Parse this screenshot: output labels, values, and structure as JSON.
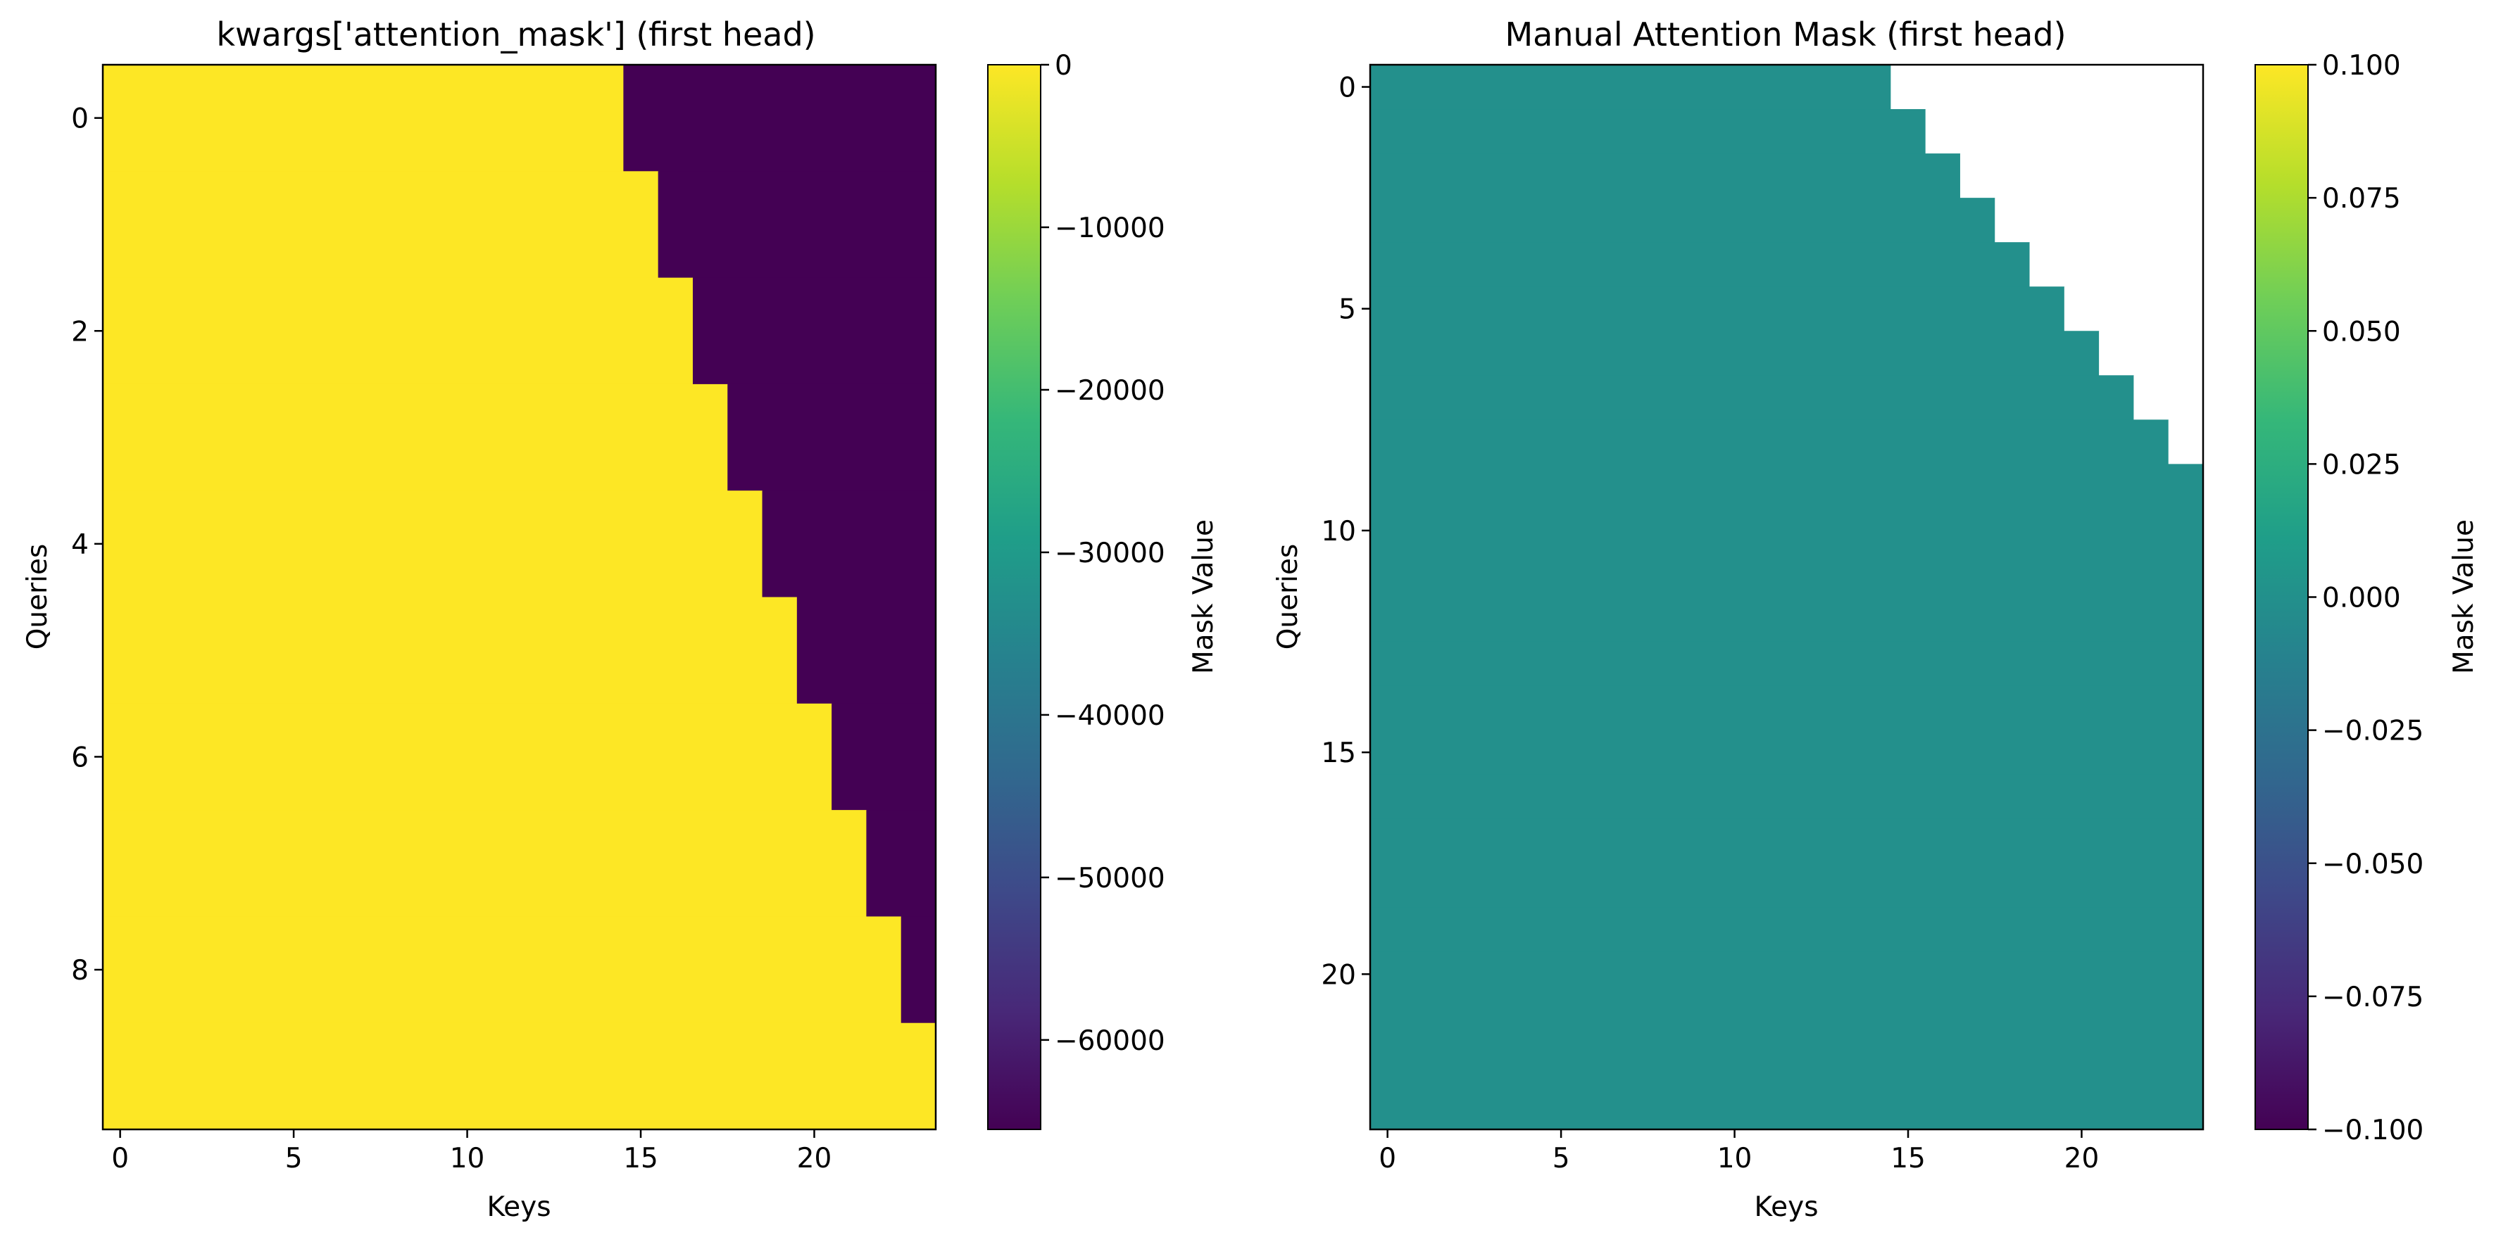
{
  "chart_data": [
    {
      "type": "heatmap",
      "title": "kwargs['attention_mask'] (first head)",
      "xlabel": "Keys",
      "ylabel": "Queries",
      "rows": 10,
      "cols": 24,
      "xticks": [
        0,
        5,
        10,
        15,
        20
      ],
      "yticks": [
        0,
        2,
        4,
        6,
        8
      ],
      "masked_value": -65504,
      "unmasked_value": 0,
      "allowed_key_count_per_row": [
        15,
        16,
        17,
        18,
        19,
        20,
        21,
        22,
        23,
        24
      ],
      "colormap": "viridis",
      "colorbar": {
        "label": "Mask Value",
        "range": [
          -65504,
          0
        ],
        "ticks": [
          0,
          -10000,
          -20000,
          -30000,
          -40000,
          -50000,
          -60000
        ],
        "tick_labels": [
          "0",
          "−10000",
          "−20000",
          "−30000",
          "−40000",
          "−50000",
          "−60000"
        ]
      },
      "masked_cells_shown_as": "color"
    },
    {
      "type": "heatmap",
      "title": "Manual Attention Mask (first head)",
      "xlabel": "Keys",
      "ylabel": "Queries",
      "rows": 24,
      "cols": 24,
      "xticks": [
        0,
        5,
        10,
        15,
        20
      ],
      "yticks": [
        0,
        5,
        10,
        15,
        20
      ],
      "masked_value": null,
      "unmasked_value": 0,
      "allowed_key_count_per_row": [
        15,
        16,
        17,
        18,
        19,
        20,
        21,
        22,
        23,
        24,
        24,
        24,
        24,
        24,
        24,
        24,
        24,
        24,
        24,
        24,
        24,
        24,
        24,
        24
      ],
      "colormap": "viridis",
      "colorbar": {
        "label": "Mask Value",
        "range": [
          -0.1,
          0.1
        ],
        "ticks": [
          0.1,
          0.075,
          0.05,
          0.025,
          0.0,
          -0.025,
          -0.05,
          -0.075,
          -0.1
        ],
        "tick_labels": [
          "0.100",
          "0.075",
          "0.050",
          "0.025",
          "0.000",
          "−0.025",
          "−0.050",
          "−0.075",
          "−0.100"
        ]
      },
      "masked_cells_shown_as": "blank"
    }
  ],
  "colors": {
    "viridis_stops": [
      "#440154",
      "#482878",
      "#3e4989",
      "#31688e",
      "#26828e",
      "#1f9e89",
      "#35b779",
      "#6ece58",
      "#b5de2b",
      "#fde725"
    ],
    "axes_edge": "#000000"
  }
}
